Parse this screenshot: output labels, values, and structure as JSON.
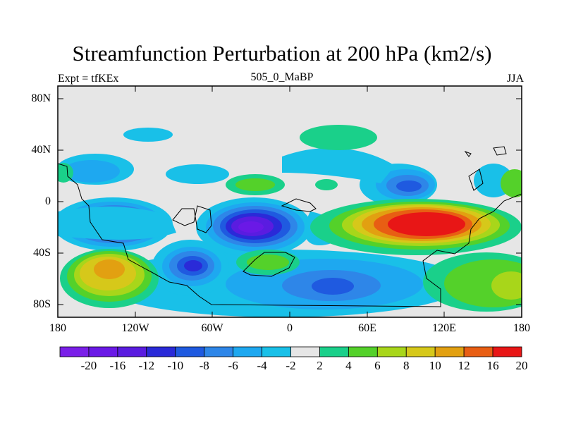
{
  "title": "Streamfunction Perturbation at 200 hPa (km2/s)",
  "left_subtitle": "Expt = tfKEx",
  "center_subtitle": "505_0_MaBP",
  "right_subtitle": "JJA",
  "lat_labels": [
    "80N",
    "40N",
    "0",
    "40S",
    "80S"
  ],
  "lon_labels": [
    "180",
    "120W",
    "60W",
    "0",
    "60E",
    "120E",
    "180"
  ],
  "colorbar": {
    "labels": [
      "-20",
      "-16",
      "-12",
      "-10",
      "-8",
      "-6",
      "-4",
      "-2",
      "2",
      "4",
      "6",
      "8",
      "10",
      "12",
      "16",
      "20"
    ],
    "colors": [
      "#7a1fe8",
      "#6a19e6",
      "#5a1ce0",
      "#2a2ad8",
      "#1f5ae0",
      "#2e86e8",
      "#1ea8f0",
      "#19c0e8",
      "#e6e6e6",
      "#1ad08a",
      "#54d12a",
      "#a8d61a",
      "#d6c81a",
      "#e2a011",
      "#e85e13",
      "#e81616"
    ]
  },
  "background_color": "#e6e6e6"
}
